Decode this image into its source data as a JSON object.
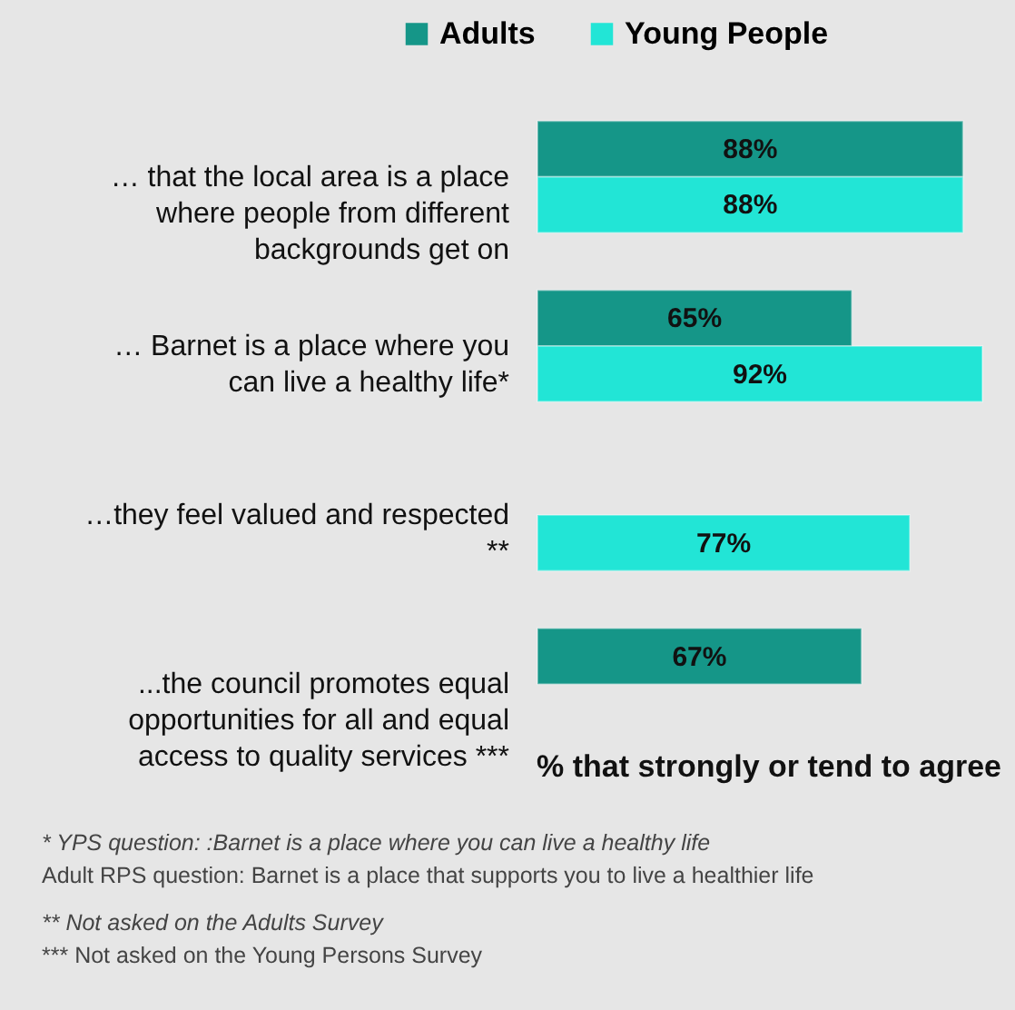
{
  "chart_data": {
    "type": "bar",
    "orientation": "horizontal",
    "categories": [
      "… that the local area is a place where people from different backgrounds get on",
      "… Barnet is a place where you can live a healthy life*",
      "…they feel valued and respected **",
      "...the council promotes equal opportunities for all and equal access to quality services ***"
    ],
    "series": [
      {
        "name": "Adults",
        "color": "#159688",
        "values": [
          88,
          65,
          null,
          67
        ],
        "value_labels": [
          "88%",
          "65%",
          null,
          "67%"
        ]
      },
      {
        "name": "Young  People",
        "color": "#22e5d6",
        "values": [
          88,
          92,
          77,
          null
        ],
        "value_labels": [
          "88%",
          "92%",
          "77%",
          null
        ]
      }
    ],
    "xlabel": "% that strongly or tend to agree",
    "legend": "top",
    "grid": false,
    "annotations": [
      "* YPS  question: :Barnet is a place where you can live a healthy life",
      "Adult  RPS question:  Barnet is a place that supports you to live a healthier life",
      "** Not asked on the Adults Survey",
      "*** Not asked on the Young  Persons Survey"
    ]
  }
}
